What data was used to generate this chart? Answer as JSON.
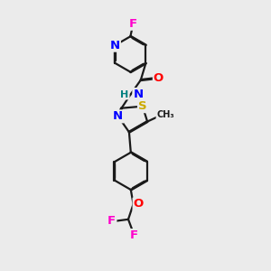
{
  "bg_color": "#ebebeb",
  "bond_color": "#1a1a1a",
  "atom_colors": {
    "F": "#ff00cc",
    "N": "#0000ff",
    "O": "#ff0000",
    "S": "#ccaa00",
    "H": "#008080",
    "C": "#1a1a1a"
  },
  "bond_width": 1.6,
  "dbo": 0.035,
  "font_size": 9.5,
  "fig_size": [
    3.0,
    3.0
  ],
  "dpi": 100
}
